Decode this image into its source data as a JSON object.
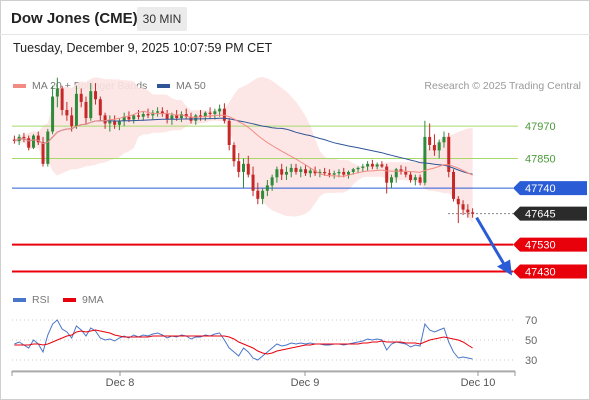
{
  "header": {
    "title": "Dow Jones (CME)",
    "timeframe": "30 MIN"
  },
  "datetime": "Tuesday, December 9, 2025 10:07:59 PM CET",
  "credit": "Research © 2025 Trading Central",
  "colors": {
    "up": "#2e8b3a",
    "down": "#c62828",
    "ma20": "#f28b82",
    "ma50": "#2f5597",
    "band_fill": "#fde3e3",
    "green_line": "#a6d96a",
    "blue_line": "#2a5cd6",
    "red_line": "#e8000b",
    "arrow": "#2a5cd6",
    "rsi": "#4a76c9",
    "rsi_ma": "#e8000b"
  },
  "chart_data": [
    {
      "type": "candlestick",
      "legend": [
        {
          "name": "MA 20 + Bollinger Bands",
          "color": "#f28b82"
        },
        {
          "name": "MA 50",
          "color": "#2f5597"
        }
      ],
      "x_ticks": [
        "Dec 8",
        "Dec 9",
        "Dec 10"
      ],
      "y_range": [
        47380,
        48030
      ],
      "levels": [
        {
          "value": 47970,
          "label": "47970",
          "color": "#a6d96a",
          "style": "green"
        },
        {
          "value": 47850,
          "label": "47850",
          "color": "#a6d96a",
          "style": "green"
        },
        {
          "value": 47740,
          "label": "47740",
          "color": "#2a5cd6",
          "style": "blue"
        },
        {
          "value": 47645,
          "label": "47645",
          "color": "#2b2b2b",
          "style": "current"
        },
        {
          "value": 47530,
          "label": "47530",
          "color": "#e8000b",
          "style": "red"
        },
        {
          "value": 47430,
          "label": "47430",
          "color": "#e8000b",
          "style": "red"
        }
      ],
      "candles": [
        [
          47920,
          47935,
          47905,
          47915
        ],
        [
          47915,
          47940,
          47900,
          47930
        ],
        [
          47930,
          47945,
          47910,
          47925
        ],
        [
          47925,
          47935,
          47880,
          47890
        ],
        [
          47890,
          47940,
          47885,
          47935
        ],
        [
          47935,
          47950,
          47900,
          47910
        ],
        [
          47910,
          47930,
          47820,
          47830
        ],
        [
          47830,
          47960,
          47820,
          47950
        ],
        [
          47950,
          48120,
          47940,
          48080
        ],
        [
          48080,
          48150,
          48040,
          48110
        ],
        [
          48110,
          48120,
          48010,
          48030
        ],
        [
          48030,
          48060,
          47990,
          48010
        ],
        [
          48010,
          48040,
          47950,
          47970
        ],
        [
          47970,
          48120,
          47960,
          48090
        ],
        [
          48090,
          48110,
          48040,
          48060
        ],
        [
          48060,
          48080,
          47980,
          48000
        ],
        [
          48000,
          48130,
          47990,
          48100
        ],
        [
          48100,
          48130,
          48050,
          48070
        ],
        [
          48070,
          48080,
          47990,
          48010
        ],
        [
          48010,
          48020,
          47960,
          47980
        ],
        [
          47980,
          48010,
          47950,
          47990
        ],
        [
          47990,
          48010,
          47960,
          47975
        ],
        [
          47975,
          48000,
          47955,
          47990
        ],
        [
          47990,
          48020,
          47970,
          48005
        ],
        [
          48005,
          48025,
          47985,
          47995
        ],
        [
          47995,
          48015,
          47980,
          48010
        ],
        [
          48010,
          48030,
          47995,
          48005
        ],
        [
          48005,
          48025,
          47990,
          48015
        ],
        [
          48015,
          48035,
          48000,
          48010
        ],
        [
          48010,
          48030,
          47995,
          48020
        ],
        [
          48020,
          48040,
          48005,
          48025
        ],
        [
          48025,
          48040,
          48005,
          48015
        ],
        [
          48015,
          48030,
          47980,
          47995
        ],
        [
          47995,
          48020,
          47975,
          48010
        ],
        [
          48010,
          48030,
          47990,
          48000
        ],
        [
          48000,
          48025,
          47985,
          48015
        ],
        [
          48015,
          48035,
          47995,
          48005
        ],
        [
          48005,
          48020,
          47980,
          47990
        ],
        [
          47990,
          48015,
          47975,
          48010
        ],
        [
          48010,
          48030,
          47990,
          48005
        ],
        [
          48005,
          48025,
          47990,
          48020
        ],
        [
          48020,
          48040,
          48000,
          48015
        ],
        [
          48015,
          48035,
          47995,
          48025
        ],
        [
          48025,
          48050,
          48005,
          48035
        ],
        [
          48035,
          48055,
          47980,
          47990
        ],
        [
          47990,
          48000,
          47880,
          47900
        ],
        [
          47900,
          47910,
          47820,
          47840
        ],
        [
          47840,
          47870,
          47780,
          47800
        ],
        [
          47800,
          47850,
          47740,
          47830
        ],
        [
          47830,
          47860,
          47780,
          47790
        ],
        [
          47790,
          47820,
          47710,
          47730
        ],
        [
          47730,
          47760,
          47680,
          47700
        ],
        [
          47700,
          47740,
          47680,
          47730
        ],
        [
          47730,
          47770,
          47710,
          47750
        ],
        [
          47750,
          47790,
          47730,
          47780
        ],
        [
          47780,
          47820,
          47760,
          47810
        ],
        [
          47810,
          47830,
          47770,
          47790
        ],
        [
          47790,
          47820,
          47770,
          47800
        ],
        [
          47800,
          47830,
          47780,
          47815
        ],
        [
          47815,
          47830,
          47790,
          47800
        ],
        [
          47800,
          47820,
          47780,
          47810
        ],
        [
          47810,
          47825,
          47785,
          47795
        ],
        [
          47795,
          47815,
          47780,
          47805
        ],
        [
          47805,
          47820,
          47785,
          47795
        ],
        [
          47795,
          47810,
          47780,
          47800
        ],
        [
          47800,
          47815,
          47785,
          47795
        ],
        [
          47795,
          47810,
          47780,
          47790
        ],
        [
          47790,
          47805,
          47775,
          47795
        ],
        [
          47795,
          47810,
          47780,
          47800
        ],
        [
          47800,
          47815,
          47780,
          47790
        ],
        [
          47790,
          47805,
          47775,
          47800
        ],
        [
          47800,
          47815,
          47790,
          47810
        ],
        [
          47810,
          47820,
          47795,
          47815
        ],
        [
          47815,
          47830,
          47800,
          47820
        ],
        [
          47820,
          47840,
          47805,
          47830
        ],
        [
          47830,
          47845,
          47810,
          47820
        ],
        [
          47820,
          47835,
          47810,
          47828
        ],
        [
          47828,
          47840,
          47815,
          47820
        ],
        [
          47820,
          47830,
          47720,
          47760
        ],
        [
          47760,
          47790,
          47740,
          47780
        ],
        [
          47780,
          47815,
          47760,
          47810
        ],
        [
          47810,
          47825,
          47790,
          47800
        ],
        [
          47800,
          47820,
          47780,
          47790
        ],
        [
          47790,
          47800,
          47760,
          47770
        ],
        [
          47770,
          47790,
          47750,
          47780
        ],
        [
          47780,
          47790,
          47750,
          47760
        ],
        [
          47760,
          47990,
          47750,
          47930
        ],
        [
          47930,
          47980,
          47880,
          47900
        ],
        [
          47900,
          47940,
          47860,
          47880
        ],
        [
          47880,
          47920,
          47850,
          47910
        ],
        [
          47910,
          47950,
          47890,
          47930
        ],
        [
          47930,
          47945,
          47780,
          47800
        ],
        [
          47800,
          47810,
          47690,
          47700
        ],
        [
          47700,
          47710,
          47610,
          47680
        ],
        [
          47680,
          47695,
          47640,
          47660
        ],
        [
          47660,
          47680,
          47630,
          47650
        ],
        [
          47650,
          47665,
          47630,
          47645
        ]
      ]
    },
    {
      "type": "line",
      "legend": [
        {
          "name": "RSI",
          "color": "#4a76c9"
        },
        {
          "name": "9MA",
          "color": "#e8000b"
        }
      ],
      "y_ticks": [
        70,
        50,
        30
      ],
      "y_range": [
        20,
        80
      ],
      "series": [
        {
          "name": "RSI",
          "values": [
            46,
            48,
            45,
            42,
            50,
            46,
            38,
            55,
            66,
            70,
            61,
            58,
            52,
            64,
            60,
            54,
            62,
            59,
            52,
            50,
            51,
            49,
            52,
            54,
            52,
            55,
            53,
            55,
            54,
            56,
            57,
            55,
            52,
            54,
            53,
            55,
            54,
            51,
            53,
            53,
            55,
            54,
            56,
            57,
            50,
            42,
            38,
            34,
            42,
            38,
            32,
            30,
            34,
            38,
            42,
            46,
            44,
            45,
            47,
            46,
            47,
            46,
            47,
            46,
            46,
            45,
            45,
            46,
            46,
            45,
            46,
            47,
            48,
            49,
            51,
            50,
            51,
            50,
            40,
            46,
            48,
            47,
            46,
            43,
            45,
            44,
            66,
            60,
            58,
            60,
            62,
            48,
            38,
            32,
            33,
            32,
            31
          ]
        },
        {
          "name": "9MA",
          "values": [
            45,
            45,
            45,
            45,
            46,
            46,
            45,
            46,
            48,
            50,
            52,
            54,
            55,
            58,
            59,
            58,
            59,
            60,
            59,
            58,
            57,
            55,
            54,
            53,
            53,
            53,
            53,
            53,
            53,
            54,
            54,
            54,
            54,
            54,
            54,
            54,
            54,
            54,
            54,
            54,
            54,
            54,
            54,
            54,
            54,
            53,
            51,
            48,
            46,
            44,
            42,
            39,
            37,
            36,
            37,
            39,
            40,
            41,
            42,
            43,
            44,
            45,
            45,
            46,
            46,
            46,
            46,
            46,
            46,
            46,
            46,
            46,
            46,
            47,
            47,
            48,
            48,
            49,
            48,
            48,
            48,
            48,
            47,
            47,
            47,
            46,
            48,
            50,
            51,
            52,
            53,
            52,
            51,
            50,
            48,
            45,
            42
          ]
        }
      ]
    }
  ]
}
